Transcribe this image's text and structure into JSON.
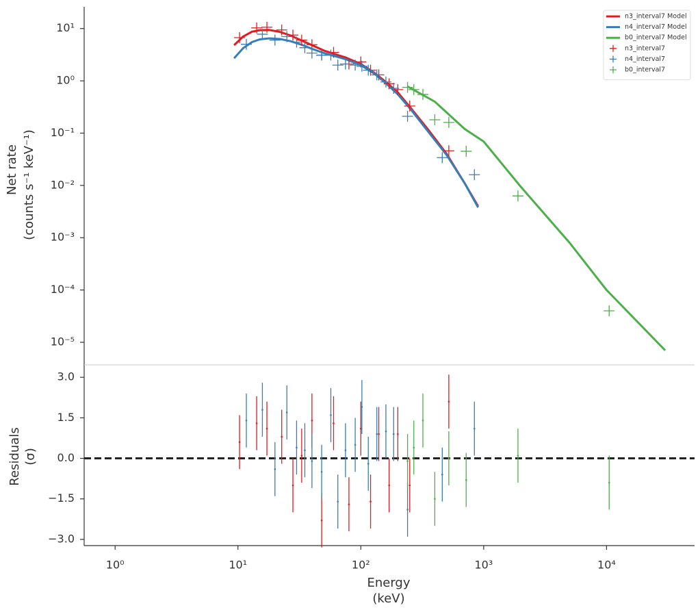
{
  "chart_data": [
    {
      "type": "line",
      "log_x": true,
      "log_y": true,
      "legend": "upper right",
      "ylabel": [
        "Net rate",
        "(counts s⁻¹ keV⁻¹)"
      ],
      "xlim": [
        0.56,
        52000
      ],
      "ylim": [
        3.7e-06,
        26
      ],
      "yticks": [
        {
          "value": 1e-05,
          "label": "10⁻⁵"
        },
        {
          "value": 0.0001,
          "label": "10⁻⁴"
        },
        {
          "value": 0.001,
          "label": "10⁻³"
        },
        {
          "value": 0.01,
          "label": "10⁻²"
        },
        {
          "value": 0.1,
          "label": "10⁻¹"
        },
        {
          "value": 1,
          "label": "10⁰"
        },
        {
          "value": 10,
          "label": "10¹"
        }
      ],
      "series": [
        {
          "name": "n3_interval7 Model",
          "color": "#e41a1c",
          "style": "line",
          "x": [
            9.3,
            11,
            13,
            15,
            18,
            22,
            27,
            33,
            40,
            50,
            60,
            75,
            100,
            130,
            160,
            200,
            250,
            350,
            500,
            700,
            900
          ],
          "values": [
            4.8,
            7,
            8.7,
            9.3,
            9.4,
            8.6,
            7.3,
            5.9,
            4.8,
            3.8,
            3.3,
            2.8,
            2.1,
            1.4,
            0.95,
            0.6,
            0.32,
            0.12,
            0.04,
            0.011,
            0.004
          ]
        },
        {
          "name": "n4_interval7 Model",
          "color": "#377eb8",
          "style": "line",
          "x": [
            9.3,
            11,
            13,
            15,
            18,
            22,
            27,
            33,
            40,
            50,
            60,
            75,
            100,
            130,
            160,
            200,
            250,
            350,
            500,
            700,
            900
          ],
          "values": [
            2.7,
            4.2,
            5.5,
            6.2,
            6.5,
            6.3,
            5.7,
            4.9,
            4.1,
            3.4,
            3.0,
            2.6,
            2.0,
            1.35,
            0.9,
            0.55,
            0.3,
            0.11,
            0.038,
            0.011,
            0.0038
          ]
        },
        {
          "name": "b0_interval7 Model",
          "color": "#4daf4a",
          "style": "line",
          "x": [
            240,
            400,
            700,
            1000,
            2000,
            5000,
            10000,
            30000
          ],
          "values": [
            0.78,
            0.4,
            0.12,
            0.069,
            0.0095,
            0.0008,
            0.0001,
            7e-06
          ]
        },
        {
          "name": "n3_interval7",
          "color": "#e41a1c",
          "style": "errorbar",
          "x": [
            10.3,
            14.2,
            17.2,
            22.7,
            28,
            33,
            40,
            48,
            60,
            80,
            100,
            120,
            140,
            170,
            200,
            250,
            520
          ],
          "values": [
            6.7,
            10.3,
            10.6,
            9.4,
            7.5,
            6.0,
            4.9,
            3.1,
            3.5,
            2.1,
            2.3,
            1.6,
            1.3,
            0.88,
            0.68,
            0.33,
            0.046
          ]
        },
        {
          "name": "n4_interval7",
          "color": "#377eb8",
          "style": "errorbar",
          "x": [
            11.7,
            15.8,
            20,
            25,
            30,
            35,
            40,
            48,
            57,
            65,
            75,
            90,
            102,
            115,
            135,
            160,
            185,
            240,
            460,
            840
          ],
          "values": [
            5.0,
            7.8,
            6.0,
            7.0,
            5.5,
            4.3,
            3.4,
            3.1,
            3.1,
            2.0,
            2.1,
            2.0,
            1.9,
            1.6,
            1.3,
            0.95,
            0.72,
            0.21,
            0.034,
            0.016
          ]
        },
        {
          "name": "b0_interval7",
          "color": "#4daf4a",
          "style": "errorbar",
          "x": [
            240,
            270,
            320,
            400,
            520,
            720,
            1900,
            10500
          ],
          "values": [
            0.75,
            0.68,
            0.55,
            0.18,
            0.16,
            0.045,
            0.0063,
            4e-05
          ]
        }
      ]
    },
    {
      "type": "scatter",
      "log_x": true,
      "ylabel": [
        "Residuals",
        "(σ)"
      ],
      "xlabel": [
        "Energy",
        "(keV)"
      ],
      "xlim": [
        0.56,
        52000
      ],
      "ylim": [
        -3.23,
        3.46
      ],
      "xticks": [
        {
          "value": 1,
          "label": "10⁰"
        },
        {
          "value": 10,
          "label": "10¹"
        },
        {
          "value": 100,
          "label": "10²"
        },
        {
          "value": 1000,
          "label": "10³"
        },
        {
          "value": 10000,
          "label": "10⁴"
        }
      ],
      "yticks": [
        {
          "value": -3,
          "label": "−3.0"
        },
        {
          "value": -1.5,
          "label": "−1.5"
        },
        {
          "value": 0,
          "label": "0.0"
        },
        {
          "value": 1.5,
          "label": "1.5"
        },
        {
          "value": 3,
          "label": "3.0"
        }
      ],
      "zero_line": 0,
      "series": [
        {
          "color": "#e41a1c",
          "x": [
            10.3,
            14.2,
            17.2,
            22.7,
            28,
            33,
            40,
            48,
            60,
            80,
            100,
            120,
            140,
            170,
            200,
            250,
            520
          ],
          "values": [
            0.6,
            1.3,
            1.1,
            0.8,
            -1.0,
            0.1,
            1.4,
            -2.3,
            1.3,
            -1.7,
            1.1,
            -1.6,
            0.9,
            -1.0,
            0.9,
            -1.0,
            2.1
          ],
          "yerr": [
            1,
            1,
            1,
            1,
            1,
            1,
            1,
            1,
            1,
            1,
            1,
            1,
            1,
            1,
            1,
            1,
            1
          ]
        },
        {
          "color": "#377eb8",
          "x": [
            11.7,
            15.8,
            20,
            25,
            30,
            35,
            40,
            48,
            57,
            65,
            75,
            90,
            102,
            115,
            135,
            160,
            185,
            240,
            460,
            840
          ],
          "values": [
            1.4,
            1.8,
            -0.4,
            1.7,
            0.4,
            0.3,
            -0.1,
            -0.5,
            1.6,
            -1.6,
            0.3,
            0.5,
            1.9,
            -0.2,
            0.9,
            1.0,
            0.9,
            -1.9,
            -0.6,
            1.1
          ],
          "yerr": [
            1,
            1,
            1,
            1,
            1,
            1,
            1,
            1,
            1,
            1,
            1,
            1,
            1,
            1,
            1,
            1,
            1,
            1,
            1,
            1
          ]
        },
        {
          "color": "#4daf4a",
          "x": [
            240,
            270,
            320,
            400,
            520,
            720,
            1900,
            10500
          ],
          "values": [
            -0.1,
            0.4,
            1.4,
            -1.5,
            0.0,
            -0.8,
            0.1,
            -0.9
          ],
          "yerr": [
            1,
            1,
            1,
            1,
            1,
            1,
            1,
            1
          ]
        }
      ]
    }
  ]
}
